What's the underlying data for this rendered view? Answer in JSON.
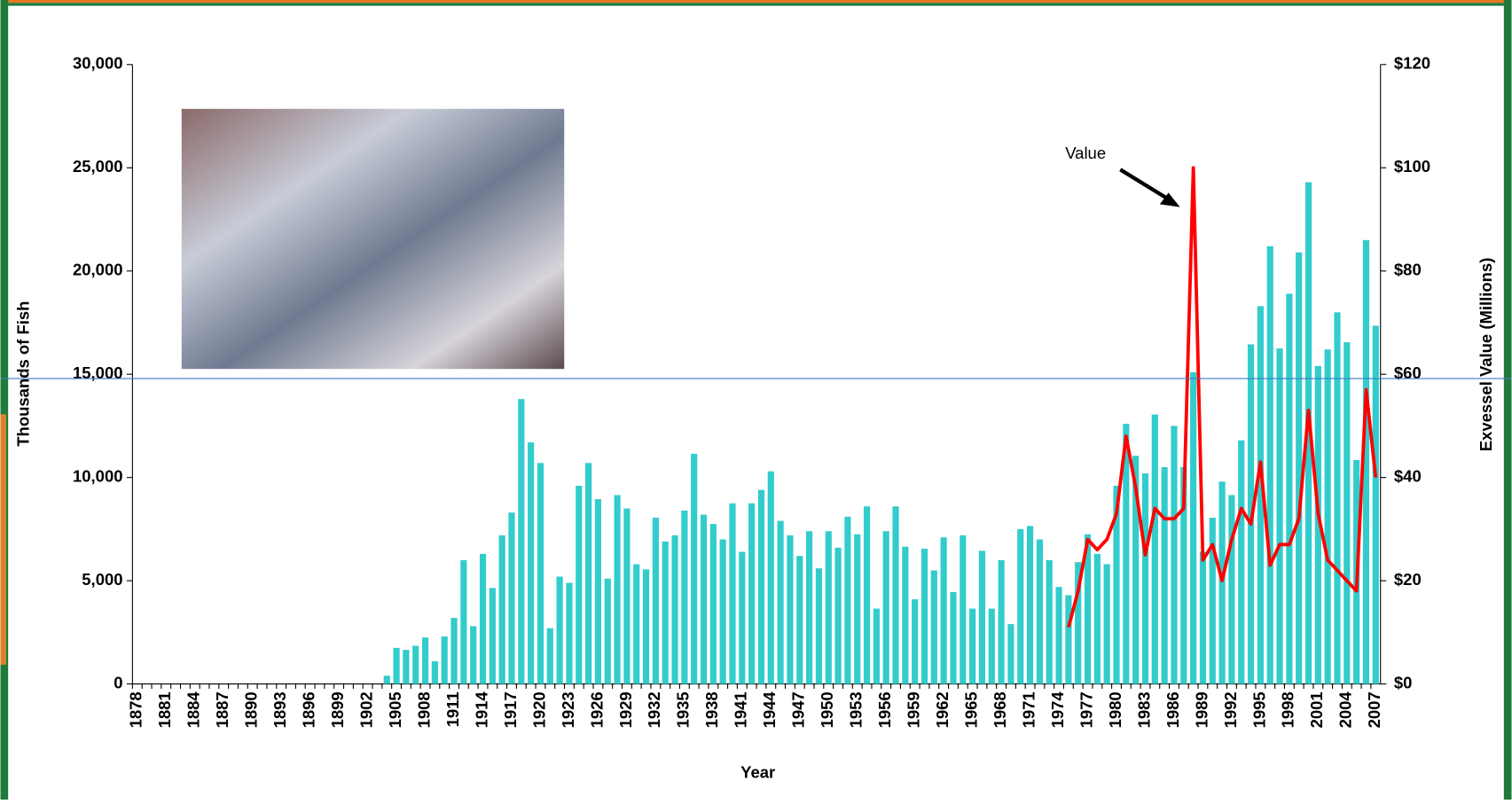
{
  "chart_data": {
    "type": "bar-line",
    "xlabel": "Year",
    "ylabel": "Thousands of Fish",
    "y2label": "Exvessel Value (Millions)",
    "annotations": [
      {
        "text": "Value"
      }
    ],
    "categories": [
      "1878",
      null,
      null,
      "1881",
      null,
      null,
      "1884",
      null,
      null,
      "1887",
      null,
      null,
      "1890",
      null,
      null,
      "1893",
      null,
      null,
      "1896",
      null,
      null,
      "1899",
      null,
      null,
      "1902",
      null,
      null,
      "1905",
      null,
      null,
      "1908",
      null,
      null,
      "1911",
      null,
      null,
      "1914",
      null,
      null,
      "1917",
      null,
      null,
      "1920",
      null,
      null,
      "1923",
      null,
      null,
      "1926",
      null,
      null,
      "1929",
      null,
      null,
      "1932",
      null,
      null,
      "1935",
      null,
      null,
      "1938",
      null,
      null,
      "1941",
      null,
      null,
      "1944",
      null,
      null,
      "1947",
      null,
      null,
      "1950",
      null,
      null,
      "1953",
      null,
      null,
      "1956",
      null,
      null,
      "1959",
      null,
      null,
      "1962",
      null,
      null,
      "1965",
      null,
      null,
      "1968",
      null,
      null,
      "1971",
      null,
      null,
      "1974",
      null,
      null,
      "1977",
      null,
      null,
      "1980",
      null,
      null,
      "1983",
      null,
      null,
      "1986",
      null,
      null,
      "1989",
      null,
      null,
      "1992",
      null,
      null,
      "1995",
      null,
      null,
      "1998",
      null,
      null,
      "2001",
      null,
      null,
      "2004",
      null,
      null,
      "2007"
    ],
    "series": [
      {
        "type": "bar",
        "color": "#33cccc",
        "values": [
          0,
          0,
          0,
          0,
          0,
          0,
          0,
          0,
          0,
          0,
          0,
          0,
          0,
          0,
          0,
          0,
          0,
          0,
          0,
          0,
          0,
          0,
          0,
          0,
          0,
          0,
          400,
          1750,
          1650,
          1850,
          2250,
          1100,
          2300,
          3200,
          6000,
          2800,
          6300,
          4650,
          7200,
          8300,
          13800,
          11700,
          10700,
          2700,
          5200,
          4900,
          9600,
          10700,
          8950,
          5100,
          9150,
          8500,
          5800,
          5550,
          8050,
          6900,
          7200,
          8400,
          11150,
          8200,
          7750,
          7000,
          8750,
          6400,
          8750,
          9400,
          10300,
          7900,
          7200,
          6200,
          7400,
          5600,
          7400,
          6600,
          8100,
          7250,
          8600,
          3650,
          7400,
          8600,
          6650,
          4100,
          6550,
          5500,
          7100,
          4450,
          7200,
          3650,
          6450,
          3650,
          6000,
          2900,
          7500,
          7650,
          7000,
          6000,
          4700,
          4300,
          5900,
          7250,
          6300,
          5800,
          9600,
          12600,
          11050,
          10200,
          13050,
          10500,
          12500,
          10500,
          15100,
          6400,
          8050,
          9800,
          9150,
          11800,
          16450,
          18300,
          21200,
          16250,
          18900,
          20900,
          24300,
          15400,
          16200,
          18000,
          16550,
          10850,
          21500,
          17350
        ]
      },
      {
        "type": "line",
        "axis": "y2",
        "color": "#ff0000",
        "values": [
          null,
          null,
          null,
          null,
          null,
          null,
          null,
          null,
          null,
          null,
          null,
          null,
          null,
          null,
          null,
          null,
          null,
          null,
          null,
          null,
          null,
          null,
          null,
          null,
          null,
          null,
          null,
          null,
          null,
          null,
          null,
          null,
          null,
          null,
          null,
          null,
          null,
          null,
          null,
          null,
          null,
          null,
          null,
          null,
          null,
          null,
          null,
          null,
          null,
          null,
          null,
          null,
          null,
          null,
          null,
          null,
          null,
          null,
          null,
          null,
          null,
          null,
          null,
          null,
          null,
          null,
          null,
          null,
          null,
          null,
          null,
          null,
          null,
          null,
          null,
          null,
          null,
          null,
          null,
          null,
          null,
          null,
          null,
          null,
          null,
          null,
          null,
          null,
          null,
          null,
          null,
          null,
          null,
          null,
          null,
          null,
          null,
          11,
          18,
          28,
          26,
          28,
          33,
          48,
          38,
          25,
          34,
          32,
          32,
          34,
          100,
          24,
          27,
          20,
          28,
          34,
          31,
          43,
          23,
          27,
          27,
          32,
          53,
          33,
          24,
          22,
          20,
          18,
          57,
          40
        ]
      }
    ],
    "ylim": [
      0,
      30000
    ],
    "yticks": [
      0,
      {
        "value": 5000,
        "label": "5,000"
      },
      {
        "value": 10000,
        "label": "10,000"
      },
      {
        "value": 15000,
        "label": "15,000"
      },
      {
        "value": 20000,
        "label": "20,000"
      },
      {
        "value": 25000,
        "label": "25,000"
      },
      {
        "value": 30000,
        "label": "30,000"
      }
    ],
    "y2lim": [
      0,
      120
    ],
    "y2ticks": [
      {
        "value": 0,
        "label": "$0"
      },
      {
        "value": 20,
        "label": "$20"
      },
      {
        "value": 40,
        "label": "$40"
      },
      {
        "value": 60,
        "label": "$60"
      },
      {
        "value": 80,
        "label": "$80"
      },
      {
        "value": 100,
        "label": "$100"
      },
      {
        "value": 120,
        "label": "$120"
      }
    ],
    "grid": false
  }
}
